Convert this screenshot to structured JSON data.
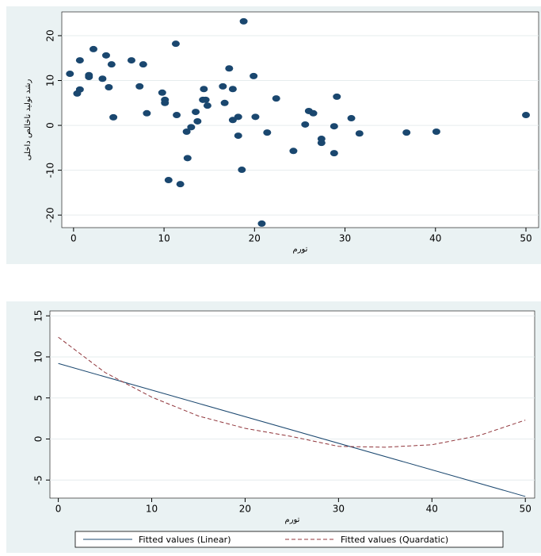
{
  "chart_data": [
    {
      "type": "scatter",
      "x_label": "تورم",
      "y_label": "رشد تولید ناخالص داخلی",
      "xlim": [
        -1.3,
        51.4
      ],
      "ylim": [
        -22.8,
        25.3
      ],
      "xticks": [
        0,
        10,
        20,
        30,
        40,
        50
      ],
      "yticks": [
        -20,
        -10,
        0,
        10,
        20
      ],
      "grid": true,
      "series": [
        {
          "color": "#1a476f",
          "x": [
            -0.4,
            0.4,
            0.7,
            0.7,
            2.2,
            1.7,
            1.7,
            3.2,
            3.6,
            3.9,
            4.2,
            4.4,
            6.4,
            7.3,
            7.7,
            8.1,
            9.8,
            10.1,
            10.1,
            10.5,
            11.3,
            11.4,
            11.8,
            12.5,
            12.6,
            13.0,
            13.5,
            13.7,
            14.3,
            14.4,
            14.6,
            14.8,
            16.5,
            16.7,
            17.2,
            17.6,
            17.6,
            18.2,
            18.2,
            18.6,
            18.8,
            19.9,
            20.1,
            20.8,
            21.4,
            22.4,
            24.3,
            25.6,
            26.0,
            26.5,
            27.4,
            27.4,
            28.8,
            28.8,
            29.1,
            30.7,
            31.6,
            36.8,
            40.1,
            50.0
          ],
          "values": [
            11.5,
            7.1,
            14.5,
            8.0,
            17.0,
            11.2,
            10.8,
            10.4,
            15.6,
            8.5,
            13.6,
            1.8,
            14.5,
            8.7,
            13.6,
            2.7,
            7.3,
            5.7,
            5.0,
            -12.2,
            18.2,
            2.3,
            -13.1,
            -1.4,
            -7.3,
            -0.4,
            3.0,
            0.9,
            5.7,
            8.1,
            5.7,
            4.4,
            8.7,
            5.0,
            12.7,
            8.1,
            1.2,
            1.9,
            -2.3,
            -9.9,
            23.2,
            11.0,
            1.9,
            -21.9,
            -1.6,
            6.0,
            -5.7,
            0.2,
            3.2,
            2.7,
            -3.0,
            -3.9,
            -0.2,
            -6.2,
            6.4,
            1.6,
            -1.8,
            -1.6,
            -1.4,
            2.3
          ]
        }
      ]
    },
    {
      "type": "line",
      "x_label": "تورم",
      "xlim": [
        -0.9,
        51
      ],
      "ylim": [
        -7.2,
        15.6
      ],
      "xticks": [
        0,
        10,
        20,
        30,
        40,
        50
      ],
      "yticks": [
        -5,
        0,
        5,
        10,
        15
      ],
      "grid": true,
      "legend": "bottom",
      "series": [
        {
          "name": "Fitted values (Linear)",
          "color": "#1a476f",
          "dash": false,
          "x": [
            0,
            50
          ],
          "values": [
            9.2,
            -7.0
          ]
        },
        {
          "name": "Fitted values (Quardatic)",
          "color": "#90353b",
          "dash": true,
          "x": [
            0,
            5,
            10,
            15,
            20,
            25,
            30,
            35,
            40,
            45,
            50
          ],
          "values": [
            12.4,
            8.1,
            5.1,
            2.8,
            1.3,
            0.3,
            -0.9,
            -1.0,
            -0.7,
            0.4,
            2.3
          ]
        }
      ]
    }
  ]
}
